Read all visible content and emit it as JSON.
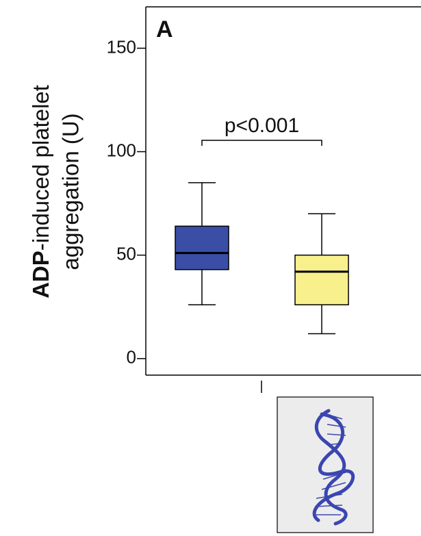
{
  "chart_data": {
    "type": "box",
    "panel_label": "A",
    "y_label_bold": "ADP",
    "y_label_rest": "-induced platelet",
    "y_label_line2": "aggregation (U)",
    "annotation": "p<0.001",
    "ylim": [
      -8,
      170
    ],
    "yticks": [
      0,
      50,
      100,
      150
    ],
    "series": [
      {
        "color": "#3a4ea6",
        "whisker_low": 26,
        "q1": 43,
        "median": 51,
        "q3": 64,
        "whisker_high": 85
      },
      {
        "color": "#f7f08c",
        "whisker_low": 12,
        "q1": 26,
        "median": 42,
        "q3": 50,
        "whisker_high": 70
      }
    ]
  }
}
